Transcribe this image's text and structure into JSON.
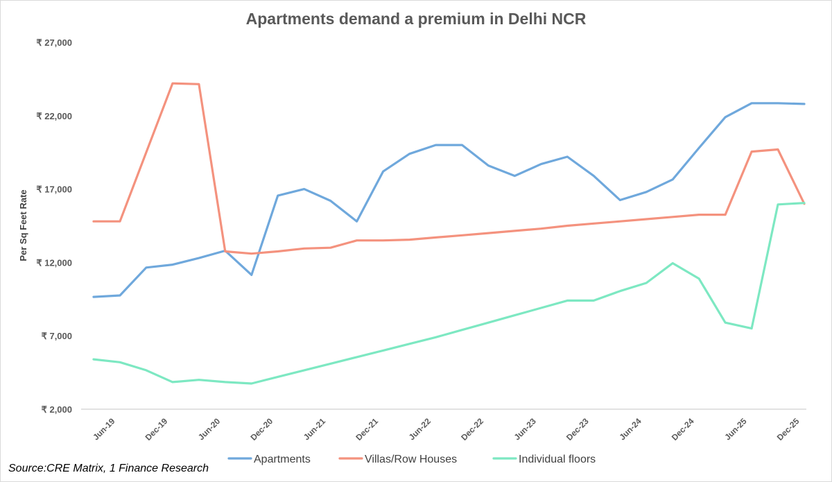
{
  "chart_data": {
    "type": "line",
    "title": "Apartments demand a premium in Delhi NCR",
    "xlabel": "",
    "ylabel": "Per Sq Feet Rate",
    "ylim": [
      2000,
      27000
    ],
    "yticks": [
      {
        "value": 2000,
        "label": "₹ 2,000"
      },
      {
        "value": 7000,
        "label": "₹ 7,000"
      },
      {
        "value": 12000,
        "label": "₹ 12,000"
      },
      {
        "value": 17000,
        "label": "₹ 17,000"
      },
      {
        "value": 22000,
        "label": "₹ 22,000"
      },
      {
        "value": 27000,
        "label": "₹ 27,000"
      }
    ],
    "xticks": [
      {
        "index": 1,
        "label": "Jun-19"
      },
      {
        "index": 4,
        "label": "Dec-19"
      },
      {
        "index": 7,
        "label": "Jun-20"
      },
      {
        "index": 10,
        "label": "Dec-20"
      },
      {
        "index": 13,
        "label": "Jun-21"
      },
      {
        "index": 16,
        "label": "Dec-21"
      },
      {
        "index": 19,
        "label": "Jun-22"
      },
      {
        "index": 22,
        "label": "Dec-22"
      },
      {
        "index": 25,
        "label": "Jun-23"
      },
      {
        "index": 28,
        "label": "Dec-23"
      },
      {
        "index": 31,
        "label": "Jun-24"
      },
      {
        "index": 34,
        "label": "Dec-24"
      },
      {
        "index": 37,
        "label": "Jun-25"
      },
      {
        "index": 40,
        "label": "Dec-25"
      }
    ],
    "series": [
      {
        "name": "Apartments",
        "color": "#6fa8dc",
        "points": [
          [
            0,
            9650
          ],
          [
            1,
            9750
          ],
          [
            2,
            11650
          ],
          [
            3,
            11850
          ],
          [
            4,
            12300
          ],
          [
            5,
            12800
          ],
          [
            6,
            11150
          ],
          [
            7,
            16550
          ],
          [
            8,
            17000
          ],
          [
            9,
            16200
          ],
          [
            10,
            14800
          ],
          [
            11,
            18200
          ],
          [
            12,
            19400
          ],
          [
            13,
            20000
          ],
          [
            14,
            20000
          ],
          [
            15,
            18600
          ],
          [
            16,
            17900
          ],
          [
            17,
            18700
          ],
          [
            18,
            19200
          ],
          [
            19,
            17900
          ],
          [
            20,
            16250
          ],
          [
            21,
            16800
          ],
          [
            22,
            17650
          ],
          [
            23,
            19800
          ],
          [
            24,
            21900
          ],
          [
            25,
            22850
          ],
          [
            26,
            22850
          ],
          [
            27,
            22800
          ]
        ]
      },
      {
        "name": "Villas/Row Houses",
        "color": "#f4927e",
        "points": [
          [
            0,
            14800
          ],
          [
            1,
            14800
          ],
          [
            2,
            19500
          ],
          [
            3,
            24200
          ],
          [
            4,
            24150
          ],
          [
            5,
            12750
          ],
          [
            6,
            12600
          ],
          [
            7,
            12750
          ],
          [
            8,
            12950
          ],
          [
            9,
            13000
          ],
          [
            10,
            13500
          ],
          [
            11,
            13500
          ],
          [
            12,
            13550
          ],
          [
            13,
            13700
          ],
          [
            14,
            13850
          ],
          [
            15,
            14000
          ],
          [
            16,
            14150
          ],
          [
            17,
            14300
          ],
          [
            18,
            14500
          ],
          [
            19,
            14650
          ],
          [
            20,
            14800
          ],
          [
            21,
            14950
          ],
          [
            22,
            15100
          ],
          [
            23,
            15250
          ],
          [
            24,
            15250
          ],
          [
            25,
            19550
          ],
          [
            26,
            19700
          ],
          [
            27,
            16000
          ]
        ]
      },
      {
        "name": "Individual floors",
        "color": "#7de8c2",
        "points": [
          [
            0,
            5400
          ],
          [
            1,
            5200
          ],
          [
            2,
            4650
          ],
          [
            3,
            3850
          ],
          [
            4,
            4000
          ],
          [
            5,
            3850
          ],
          [
            6,
            3750
          ],
          [
            7,
            4200
          ],
          [
            8,
            4650
          ],
          [
            9,
            5100
          ],
          [
            10,
            5550
          ],
          [
            11,
            6000
          ],
          [
            12,
            6450
          ],
          [
            13,
            6900
          ],
          [
            14,
            7400
          ],
          [
            15,
            7900
          ],
          [
            16,
            8400
          ],
          [
            17,
            8900
          ],
          [
            18,
            9400
          ],
          [
            19,
            9400
          ],
          [
            20,
            10050
          ],
          [
            21,
            10600
          ],
          [
            22,
            11950
          ],
          [
            23,
            10900
          ],
          [
            24,
            7900
          ],
          [
            25,
            7500
          ],
          [
            26,
            15950
          ],
          [
            27,
            16050
          ]
        ]
      }
    ],
    "legend": "bottom",
    "grid": false
  },
  "footer": {
    "source": "Source:CRE Matrix, 1 Finance Research"
  }
}
